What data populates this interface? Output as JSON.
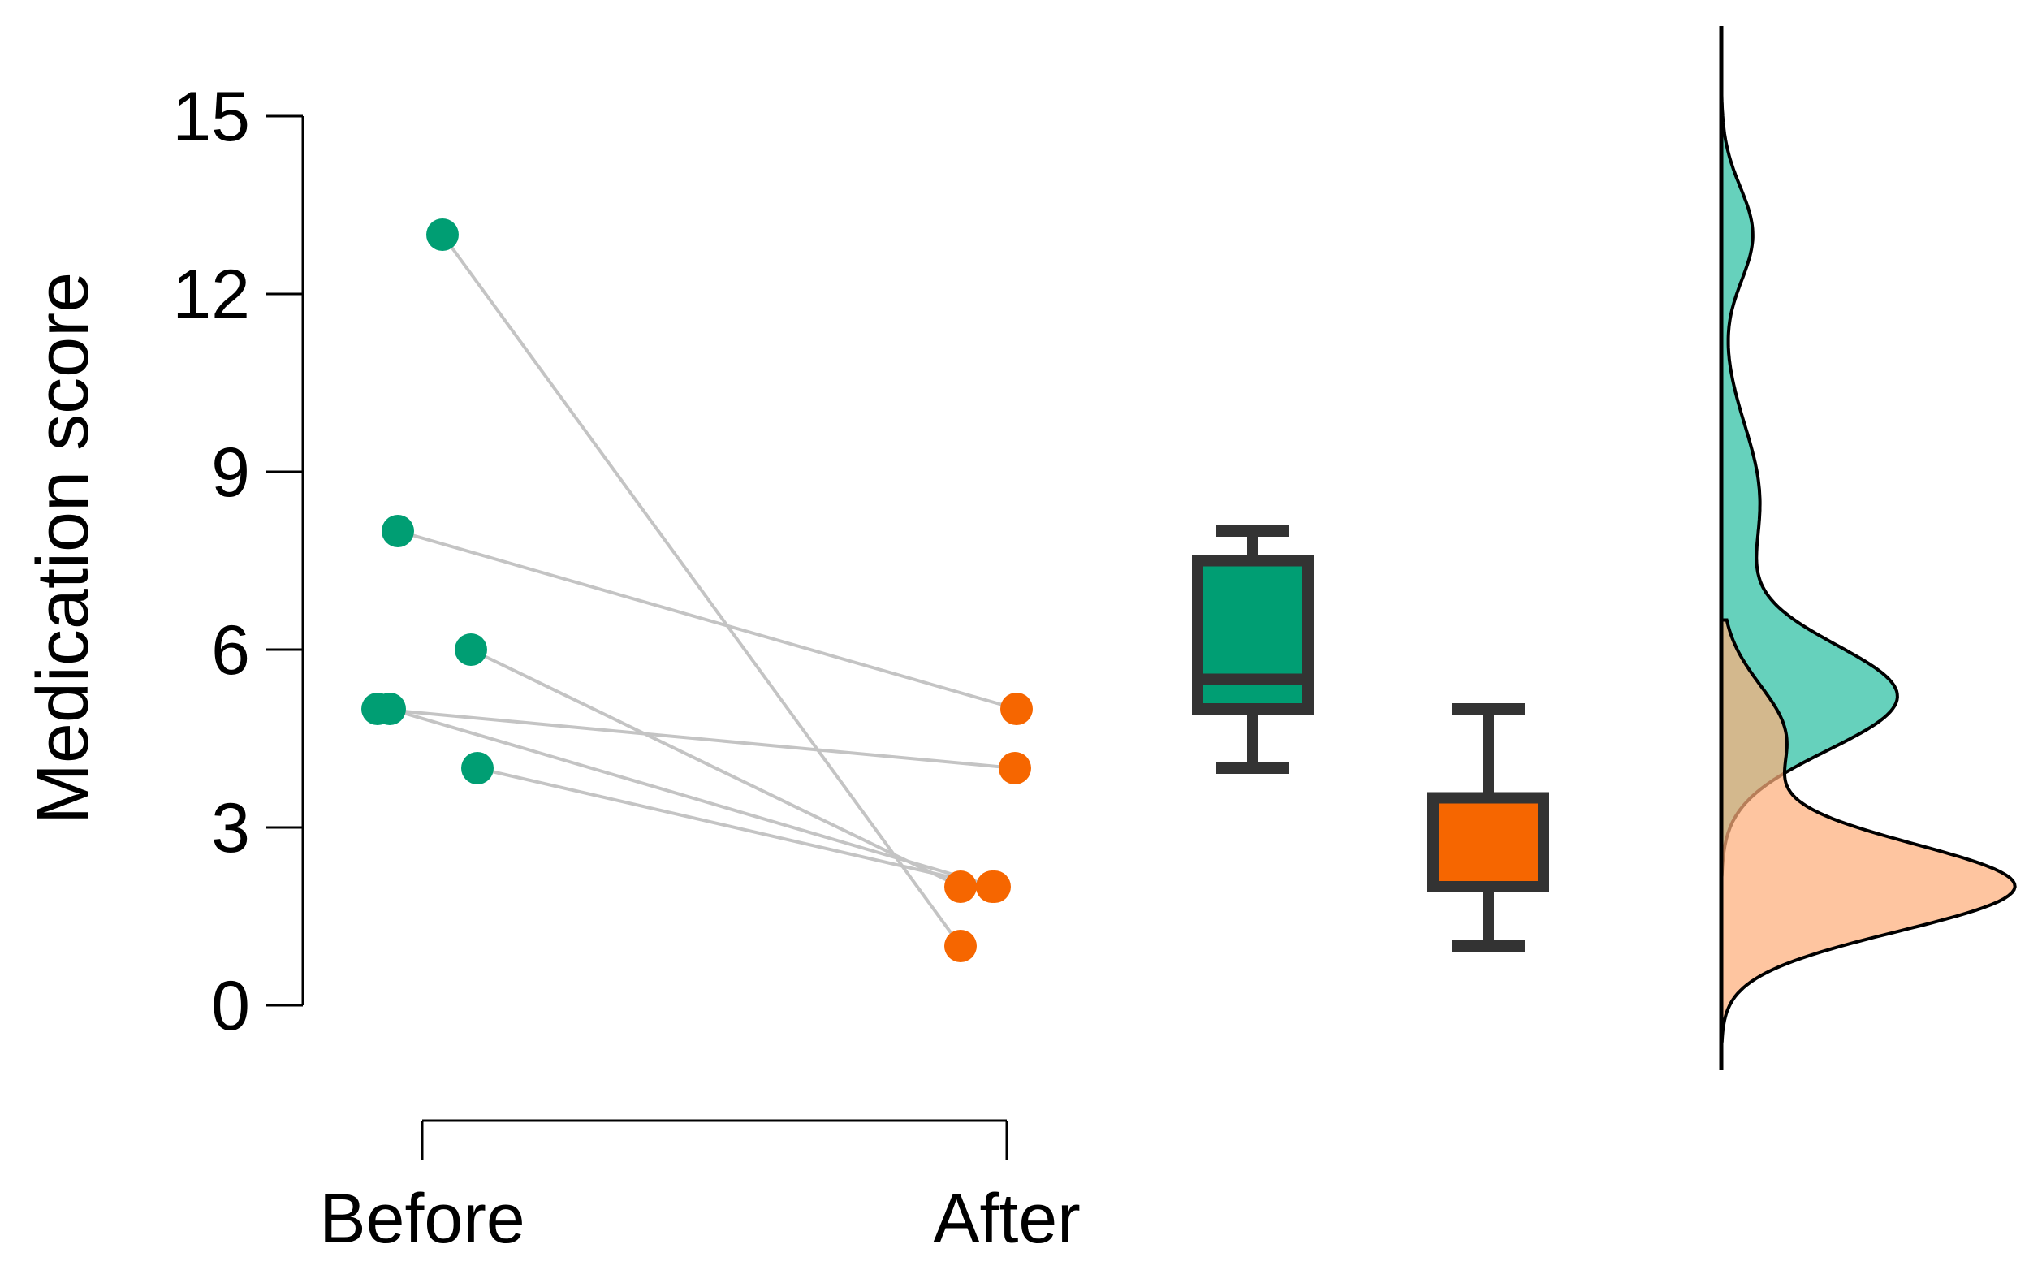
{
  "chart_data": {
    "type": "raincloud",
    "ylabel": "Medication score",
    "ylim": [
      0,
      15
    ],
    "yticks": [
      0,
      3,
      6,
      9,
      12,
      15
    ],
    "categories": [
      "Before",
      "After"
    ],
    "colors": {
      "Before": "#009E73",
      "After": "#F66600",
      "Before_density": "#66D1BC",
      "After_density": "#FDAE7B"
    },
    "pairs": [
      {
        "before": 13,
        "after": 1
      },
      {
        "before": 8,
        "after": 5
      },
      {
        "before": 6,
        "after": 2
      },
      {
        "before": 5,
        "after": 4
      },
      {
        "before": 5,
        "after": 2
      },
      {
        "before": 4,
        "after": 2
      }
    ],
    "boxplots": [
      {
        "group": "Before",
        "min": 4,
        "q1": 5,
        "median": 5.5,
        "q3": 7.5,
        "max": 8
      },
      {
        "group": "After",
        "min": 1,
        "q1": 2,
        "median": 2,
        "q3": 3.5,
        "max": 5
      }
    ],
    "density": {
      "Before": {
        "peaks": [
          {
            "center": 5.2,
            "sd": 0.9,
            "weight": 1.0
          },
          {
            "center": 13,
            "sd": 0.8,
            "weight": 0.18
          },
          {
            "center": 8.5,
            "sd": 1.3,
            "weight": 0.22
          }
        ]
      },
      "After": {
        "peaks": [
          {
            "center": 2.0,
            "sd": 0.75,
            "weight": 1.0
          },
          {
            "center": 4.5,
            "sd": 0.9,
            "weight": 0.22
          }
        ]
      }
    }
  }
}
